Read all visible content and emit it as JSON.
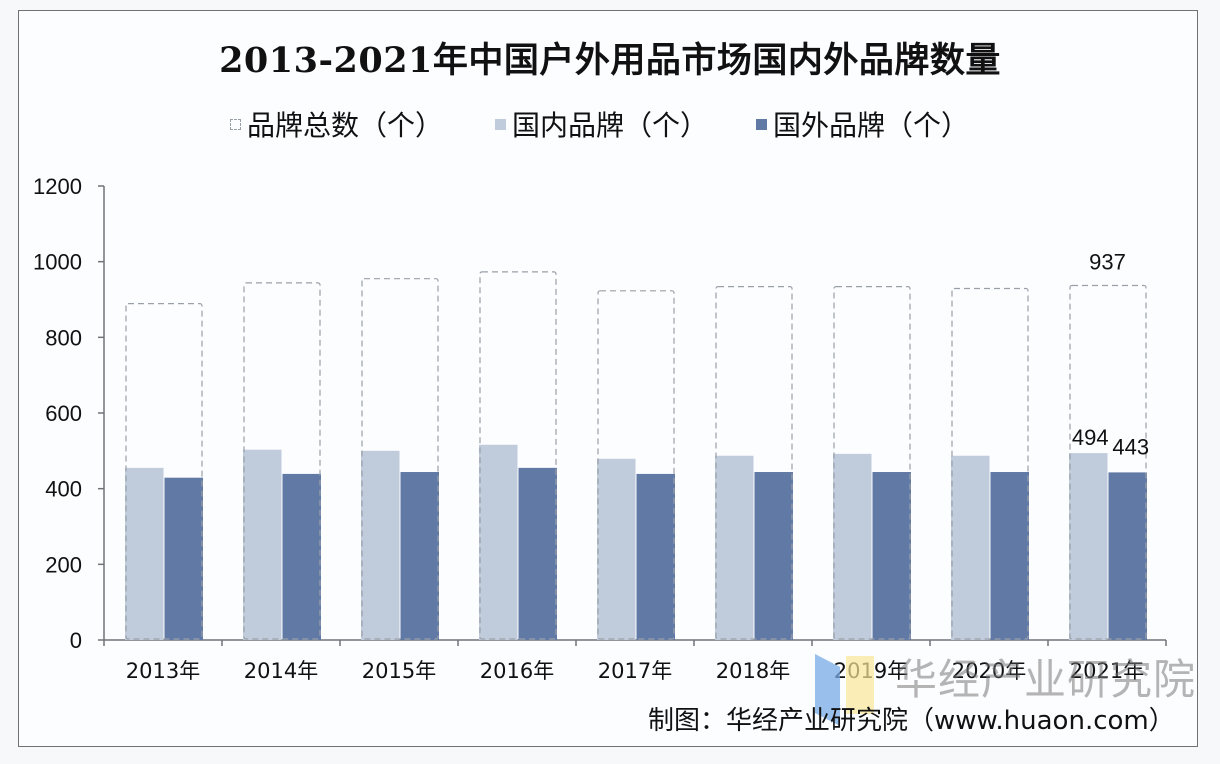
{
  "title": "2013-2021年中国户外用品市场国内外品牌数量",
  "legend": {
    "total": "品牌总数（个）",
    "domestic": "国内品牌（个）",
    "foreign": "国外品牌（个）"
  },
  "colors": {
    "domestic": "#c0cbdc",
    "foreign": "#6179a5",
    "total_border": "#9aa0a8",
    "axis": "#6f7378"
  },
  "source": "制图：华经产业研究院（www.huaon.com）",
  "watermark": "华经产业研究院",
  "chart_data": {
    "type": "bar",
    "title": "2013-2021年中国户外用品市场国内外品牌数量",
    "xlabel": "",
    "ylabel": "",
    "ylim": [
      0,
      1200
    ],
    "yticks": [
      0,
      200,
      400,
      600,
      800,
      1000,
      1200
    ],
    "grid": false,
    "legend_position": "top",
    "categories": [
      "2013年",
      "2014年",
      "2015年",
      "2016年",
      "2017年",
      "2018年",
      "2019年",
      "2020年",
      "2021年"
    ],
    "series": [
      {
        "name": "品牌总数（个）",
        "style": "dashed-outline",
        "values": [
          889,
          944,
          955,
          973,
          923,
          934,
          934,
          929,
          937
        ]
      },
      {
        "name": "国内品牌（个）",
        "color": "#c0cbdc",
        "values": [
          455,
          503,
          500,
          516,
          479,
          487,
          492,
          487,
          494
        ]
      },
      {
        "name": "国外品牌（个）",
        "color": "#6179a5",
        "values": [
          429,
          439,
          444,
          455,
          439,
          444,
          444,
          444,
          443
        ]
      }
    ],
    "data_labels": [
      {
        "category": "2021年",
        "series": "品牌总数（个）",
        "value": "937"
      },
      {
        "category": "2021年",
        "series": "国内品牌（个）",
        "value": "494"
      },
      {
        "category": "2021年",
        "series": "国外品牌（个）",
        "value": "443"
      }
    ]
  }
}
